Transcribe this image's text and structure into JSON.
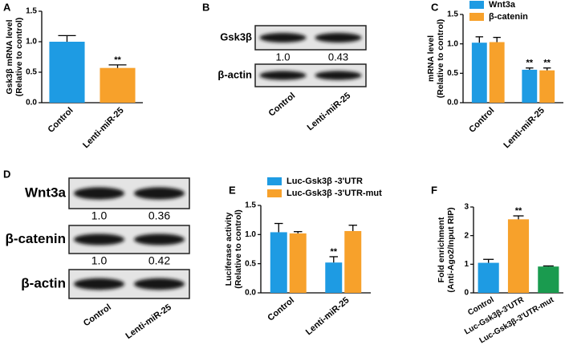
{
  "chart_data": [
    {
      "type": "bar",
      "panel": "A",
      "y_label": [
        "Gsk3β mRNA level",
        "(Relative to control)"
      ],
      "categories": [
        "Control",
        "Lenti-miR-25"
      ],
      "values": [
        1.0,
        0.57
      ],
      "errors": [
        0.1,
        0.05
      ],
      "colors": [
        "#1e9be3",
        "#f7a12b"
      ],
      "significance": [
        null,
        "**"
      ],
      "ylim": [
        0,
        1.5
      ],
      "yticks": [
        {
          "value": 0,
          "label": "0.0"
        },
        {
          "value": 0.5,
          "label": "0.5"
        },
        {
          "value": 1,
          "label": "1.0"
        },
        {
          "value": 1.5,
          "label": "1.5"
        }
      ]
    },
    {
      "type": "bar",
      "panel": "C",
      "y_label": [
        "mRNA level",
        "(Relative to control)"
      ],
      "categories": [
        "Control",
        "Lenti-miR-25"
      ],
      "series": [
        {
          "name": "Wnt3a",
          "color": "#1e9be3",
          "values": [
            1.02,
            0.56
          ],
          "errors": [
            0.1,
            0.03
          ],
          "significance": [
            null,
            "**"
          ]
        },
        {
          "name": "β-catenin",
          "color": "#f7a12b",
          "values": [
            1.03,
            0.55
          ],
          "errors": [
            0.08,
            0.04
          ],
          "significance": [
            null,
            "**"
          ]
        }
      ],
      "legend": "top",
      "ylim": [
        0,
        1.5
      ],
      "yticks": [
        {
          "value": 0,
          "label": "0.0"
        },
        {
          "value": 0.5,
          "label": "0.5"
        },
        {
          "value": 1,
          "label": "1.0"
        },
        {
          "value": 1.5,
          "label": "1.5"
        }
      ]
    },
    {
      "type": "bar",
      "panel": "E",
      "y_label": [
        "Luciferase activity",
        "(Relative to control)"
      ],
      "categories": [
        "Control",
        "Lenti-miR-25"
      ],
      "series": [
        {
          "name": "Luc-Gsk3β -3'UTR",
          "color": "#1e9be3",
          "values": [
            1.04,
            0.52
          ],
          "errors": [
            0.15,
            0.1
          ],
          "significance": [
            null,
            "**"
          ]
        },
        {
          "name": "Luc-Gsk3β -3'UTR-mut",
          "color": "#f7a12b",
          "values": [
            1.02,
            1.06
          ],
          "errors": [
            0.03,
            0.1
          ],
          "significance": [
            null,
            null
          ]
        }
      ],
      "legend": "top",
      "ylim": [
        0,
        1.5
      ],
      "yticks": [
        {
          "value": 0,
          "label": "0.0"
        },
        {
          "value": 0.5,
          "label": "0.5"
        },
        {
          "value": 1,
          "label": "1.0"
        },
        {
          "value": 1.5,
          "label": "1.5"
        }
      ]
    },
    {
      "type": "bar",
      "panel": "F",
      "y_label": [
        "Fold enrichment",
        "(Anti-Ago2/Input RIP)"
      ],
      "categories": [
        "Control",
        "Luc-Gsk3β-3'UTR",
        "Luc-Gsk3β-3'UTR-mut"
      ],
      "values": [
        1.05,
        2.57,
        0.92
      ],
      "errors": [
        0.12,
        0.12,
        0.02
      ],
      "colors": [
        "#1e9be3",
        "#f7a12b",
        "#1a9b4f"
      ],
      "significance": [
        null,
        "**",
        null
      ],
      "ylim": [
        0,
        3
      ],
      "yticks": [
        0,
        1,
        2,
        3
      ]
    }
  ],
  "blots": [
    {
      "panel": "B",
      "lanes": [
        "Control",
        "Lenti-miR-25"
      ],
      "rows": [
        {
          "label": "Gsk3β",
          "quantities": [
            {
              "value": 1.0,
              "label": "1.0"
            },
            0.43
          ]
        },
        {
          "label": "β-actin"
        }
      ]
    },
    {
      "panel": "D",
      "lanes": [
        "Control",
        "Lenti-miR-25"
      ],
      "rows": [
        {
          "label": "Wnt3a",
          "quantities": [
            {
              "value": 1.0,
              "label": "1.0"
            },
            0.36
          ]
        },
        {
          "label": "β-catenin",
          "quantities": [
            {
              "value": 1.0,
              "label": "1.0"
            },
            0.42
          ]
        },
        {
          "label": "β-actin"
        }
      ]
    }
  ]
}
